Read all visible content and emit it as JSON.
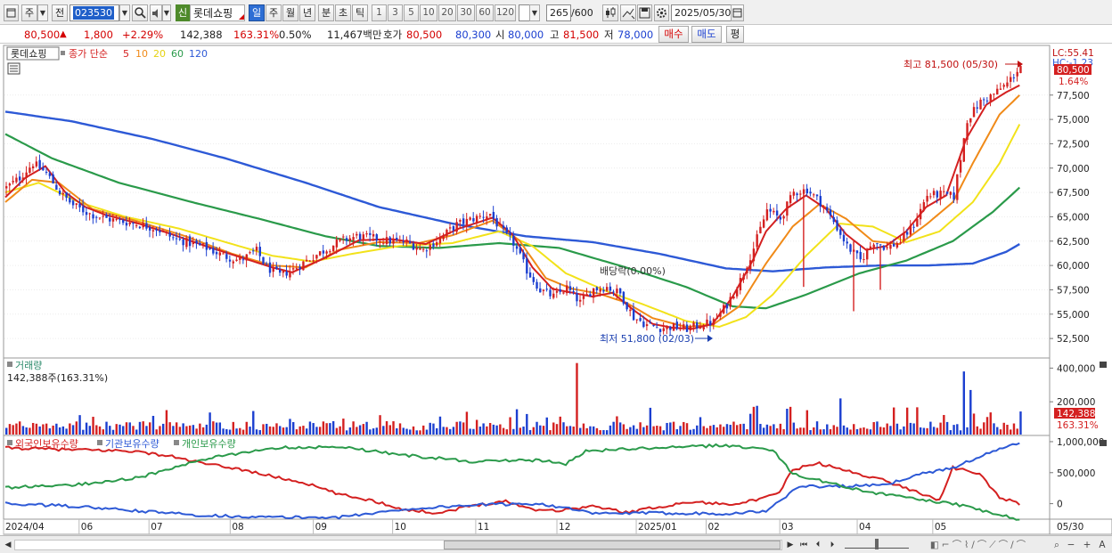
{
  "toolbar": {
    "market_label": "주",
    "prev_label": "전",
    "stock_code": "023530",
    "badge": "신",
    "stock_name": "롯데쇼핑",
    "periods": [
      "일",
      "주",
      "월",
      "년",
      "분",
      "초",
      "틱"
    ],
    "active_period": "일",
    "tick_numbers": [
      "1",
      "3",
      "5",
      "10",
      "20",
      "30",
      "60",
      "120"
    ],
    "count": "265",
    "count_max": "/600",
    "date": "2025/05/30"
  },
  "quote": {
    "price": "80,500",
    "arrow": "▲",
    "change": "1,800",
    "change_pct": "+2.29%",
    "volume": "142,388",
    "volume_pct": "163.31%",
    "turnover": "0.50%",
    "amount": "11,467백만",
    "hoga_label": "호가",
    "ask": "80,500",
    "bid": "80,300",
    "open_label": "시",
    "open": "80,000",
    "high_label": "고",
    "high": "81,500",
    "low_label": "저",
    "low": "78,000",
    "buy_label": "매수",
    "sell_label": "매도",
    "eval_label": "평"
  },
  "chart_data": {
    "type": "candlestick",
    "title": "롯데쇼핑",
    "legend": {
      "label": "종가 단순",
      "periods": [
        "5",
        "10",
        "20",
        "60",
        "120"
      ],
      "colors": [
        "#d42020",
        "#f08a18",
        "#f2e21a",
        "#2a9a4a",
        "#2d59d6"
      ]
    },
    "price_axis": {
      "ticks": [
        "77,500",
        "75,000",
        "72,500",
        "70,000",
        "67,500",
        "65,000",
        "62,500",
        "60,000",
        "57,500",
        "55,000",
        "52,500"
      ],
      "ylim": [
        50500,
        82600
      ],
      "lc_label": "LC:55.41",
      "hc_label": "HC:-1.23",
      "current_price": "80,500",
      "current_pct": "1.64%"
    },
    "annotations": {
      "high": "최고 81,500 (05/30)",
      "low": "최저 51,800 (02/03)",
      "dividend": "배당락(0.00%)"
    },
    "x_labels": [
      "2024/04",
      "06",
      "07",
      "08",
      "09",
      "10",
      "11",
      "12",
      "2025/01",
      "02",
      "03",
      "04",
      "05",
      "05/30"
    ],
    "close_anchors": [
      [
        0,
        68000
      ],
      [
        4,
        69000
      ],
      [
        8,
        70500
      ],
      [
        12,
        69500
      ],
      [
        16,
        67500
      ],
      [
        20,
        66200
      ],
      [
        25,
        65300
      ],
      [
        30,
        64800
      ],
      [
        35,
        64500
      ],
      [
        40,
        64200
      ],
      [
        45,
        63800
      ],
      [
        50,
        62800
      ],
      [
        55,
        62300
      ],
      [
        60,
        61800
      ],
      [
        65,
        61000
      ],
      [
        70,
        60500
      ],
      [
        75,
        61500
      ],
      [
        78,
        59800
      ],
      [
        82,
        59000
      ],
      [
        86,
        59600
      ],
      [
        90,
        60500
      ],
      [
        95,
        61500
      ],
      [
        100,
        62500
      ],
      [
        105,
        63000
      ],
      [
        110,
        62800
      ],
      [
        115,
        62500
      ],
      [
        120,
        62400
      ],
      [
        125,
        61600
      ],
      [
        130,
        62800
      ],
      [
        135,
        64200
      ],
      [
        140,
        64800
      ],
      [
        145,
        65300
      ],
      [
        148,
        63800
      ],
      [
        152,
        62300
      ],
      [
        156,
        59500
      ],
      [
        160,
        57500
      ],
      [
        164,
        56800
      ],
      [
        168,
        57700
      ],
      [
        172,
        56200
      ],
      [
        176,
        57600
      ],
      [
        180,
        57800
      ],
      [
        184,
        57100
      ],
      [
        188,
        54700
      ],
      [
        192,
        53900
      ],
      [
        196,
        53600
      ],
      [
        200,
        53700
      ],
      [
        204,
        53500
      ],
      [
        208,
        53900
      ],
      [
        212,
        54200
      ],
      [
        216,
        56000
      ],
      [
        220,
        58500
      ],
      [
        224,
        61800
      ],
      [
        228,
        65700
      ],
      [
        232,
        64800
      ],
      [
        236,
        67500
      ],
      [
        240,
        67800
      ],
      [
        244,
        66500
      ],
      [
        248,
        64500
      ],
      [
        252,
        62000
      ],
      [
        256,
        60500
      ],
      [
        260,
        62500
      ],
      [
        264,
        61800
      ],
      [
        268,
        62500
      ],
      [
        272,
        64200
      ],
      [
        276,
        67200
      ],
      [
        280,
        67300
      ],
      [
        284,
        67100
      ],
      [
        288,
        75000
      ],
      [
        292,
        76800
      ],
      [
        296,
        77600
      ],
      [
        300,
        78700
      ],
      [
        304,
        80500
      ]
    ],
    "wicks": [
      [
        254,
        55300,
        62500
      ],
      [
        239,
        57800,
        67800
      ],
      [
        262,
        57500,
        61800
      ]
    ],
    "ma": {
      "5": [
        [
          0,
          67000
        ],
        [
          6,
          69000
        ],
        [
          12,
          70200
        ],
        [
          18,
          67500
        ],
        [
          24,
          66000
        ],
        [
          30,
          65200
        ],
        [
          40,
          64300
        ],
        [
          50,
          63200
        ],
        [
          60,
          62000
        ],
        [
          70,
          60900
        ],
        [
          80,
          59800
        ],
        [
          86,
          59300
        ],
        [
          96,
          60800
        ],
        [
          106,
          62600
        ],
        [
          116,
          62700
        ],
        [
          126,
          62200
        ],
        [
          136,
          63800
        ],
        [
          146,
          64900
        ],
        [
          152,
          63200
        ],
        [
          158,
          59800
        ],
        [
          164,
          57600
        ],
        [
          170,
          57200
        ],
        [
          176,
          56800
        ],
        [
          182,
          57200
        ],
        [
          188,
          55500
        ],
        [
          194,
          54000
        ],
        [
          200,
          53600
        ],
        [
          206,
          53500
        ],
        [
          212,
          54000
        ],
        [
          218,
          56800
        ],
        [
          224,
          60500
        ],
        [
          228,
          63500
        ],
        [
          234,
          65800
        ],
        [
          240,
          67200
        ],
        [
          246,
          65800
        ],
        [
          252,
          63200
        ],
        [
          258,
          61600
        ],
        [
          264,
          62000
        ],
        [
          270,
          63500
        ],
        [
          276,
          66000
        ],
        [
          282,
          67200
        ],
        [
          288,
          73000
        ],
        [
          294,
          76500
        ],
        [
          300,
          77800
        ],
        [
          304,
          78500
        ]
      ],
      "10": [
        [
          0,
          66500
        ],
        [
          8,
          68800
        ],
        [
          16,
          68500
        ],
        [
          26,
          65800
        ],
        [
          40,
          64500
        ],
        [
          54,
          63000
        ],
        [
          68,
          61200
        ],
        [
          80,
          60000
        ],
        [
          90,
          59800
        ],
        [
          100,
          61600
        ],
        [
          112,
          62400
        ],
        [
          124,
          62300
        ],
        [
          134,
          63100
        ],
        [
          146,
          64600
        ],
        [
          154,
          62600
        ],
        [
          162,
          58700
        ],
        [
          170,
          57600
        ],
        [
          178,
          57100
        ],
        [
          186,
          56200
        ],
        [
          194,
          54600
        ],
        [
          204,
          53700
        ],
        [
          212,
          53900
        ],
        [
          220,
          55800
        ],
        [
          228,
          60200
        ],
        [
          236,
          64000
        ],
        [
          244,
          66300
        ],
        [
          252,
          64800
        ],
        [
          260,
          62500
        ],
        [
          268,
          62200
        ],
        [
          276,
          64200
        ],
        [
          284,
          66500
        ],
        [
          290,
          70500
        ],
        [
          298,
          75500
        ],
        [
          304,
          77500
        ]
      ],
      "20": [
        [
          0,
          67500
        ],
        [
          10,
          68500
        ],
        [
          22,
          66500
        ],
        [
          36,
          65000
        ],
        [
          52,
          63800
        ],
        [
          66,
          62400
        ],
        [
          80,
          61000
        ],
        [
          92,
          60400
        ],
        [
          104,
          61200
        ],
        [
          118,
          62000
        ],
        [
          134,
          62300
        ],
        [
          148,
          63500
        ],
        [
          158,
          62000
        ],
        [
          168,
          59200
        ],
        [
          180,
          57400
        ],
        [
          192,
          55900
        ],
        [
          204,
          54300
        ],
        [
          214,
          53700
        ],
        [
          222,
          54700
        ],
        [
          230,
          57000
        ],
        [
          240,
          61000
        ],
        [
          250,
          64300
        ],
        [
          260,
          64000
        ],
        [
          270,
          62400
        ],
        [
          280,
          63500
        ],
        [
          290,
          66500
        ],
        [
          298,
          70500
        ],
        [
          304,
          74500
        ]
      ],
      "60": [
        [
          0,
          73500
        ],
        [
          14,
          71000
        ],
        [
          34,
          68500
        ],
        [
          56,
          66500
        ],
        [
          76,
          64800
        ],
        [
          96,
          63000
        ],
        [
          112,
          62000
        ],
        [
          130,
          61800
        ],
        [
          148,
          62300
        ],
        [
          166,
          61800
        ],
        [
          186,
          59800
        ],
        [
          204,
          57800
        ],
        [
          218,
          55800
        ],
        [
          228,
          55600
        ],
        [
          240,
          57000
        ],
        [
          256,
          59200
        ],
        [
          270,
          60500
        ],
        [
          284,
          62500
        ],
        [
          296,
          65500
        ],
        [
          304,
          68000
        ]
      ],
      "120": [
        [
          0,
          75800
        ],
        [
          20,
          74800
        ],
        [
          44,
          73000
        ],
        [
          66,
          71000
        ],
        [
          90,
          68500
        ],
        [
          112,
          66000
        ],
        [
          134,
          64300
        ],
        [
          156,
          63000
        ],
        [
          176,
          62400
        ],
        [
          196,
          61200
        ],
        [
          216,
          59700
        ],
        [
          230,
          59400
        ],
        [
          246,
          59800
        ],
        [
          262,
          60000
        ],
        [
          276,
          60000
        ],
        [
          290,
          60200
        ],
        [
          300,
          61400
        ],
        [
          304,
          62200
        ]
      ]
    },
    "volume": {
      "label": "거래량",
      "info": "142,388주(163.31%)",
      "ticks": [
        "400,000",
        "200,000"
      ],
      "ylim": [
        0,
        460000
      ],
      "last": "142,388",
      "last_pct": "163.31%",
      "spikes": [
        [
          171,
          430000
        ],
        [
          250,
          220000
        ],
        [
          287,
          380000
        ],
        [
          289,
          270000
        ],
        [
          224,
          170000
        ],
        [
          240,
          150000
        ]
      ]
    },
    "holdings": {
      "labels": [
        "외국인보유수량",
        "기관보유수량",
        "개인보유수량"
      ],
      "colors": [
        "#d42020",
        "#2d59d6",
        "#2a9a4a"
      ],
      "ticks": [
        "1,000,000",
        "500,000",
        "0"
      ],
      "ylim": [
        -250000,
        1100000
      ],
      "foreign": [
        [
          0,
          900000
        ],
        [
          20,
          870000
        ],
        [
          38,
          850000
        ],
        [
          50,
          760000
        ],
        [
          60,
          640000
        ],
        [
          70,
          560000
        ],
        [
          80,
          440000
        ],
        [
          90,
          330000
        ],
        [
          100,
          150000
        ],
        [
          110,
          50000
        ],
        [
          120,
          -100000
        ],
        [
          130,
          -150000
        ],
        [
          140,
          -30000
        ],
        [
          150,
          40000
        ],
        [
          158,
          -90000
        ],
        [
          166,
          -110000
        ],
        [
          176,
          -40000
        ],
        [
          186,
          -140000
        ],
        [
          196,
          -50000
        ],
        [
          206,
          30000
        ],
        [
          216,
          -10000
        ],
        [
          226,
          60000
        ],
        [
          232,
          180000
        ],
        [
          236,
          550000
        ],
        [
          244,
          650000
        ],
        [
          252,
          530000
        ],
        [
          262,
          400000
        ],
        [
          270,
          250000
        ],
        [
          280,
          60000
        ],
        [
          284,
          580000
        ],
        [
          292,
          480000
        ],
        [
          298,
          100000
        ],
        [
          304,
          0
        ]
      ],
      "inst": [
        [
          0,
          0
        ],
        [
          20,
          -40000
        ],
        [
          40,
          -120000
        ],
        [
          60,
          -190000
        ],
        [
          80,
          -220000
        ],
        [
          100,
          -220000
        ],
        [
          120,
          -90000
        ],
        [
          140,
          -20000
        ],
        [
          160,
          0
        ],
        [
          166,
          -50000
        ],
        [
          176,
          -160000
        ],
        [
          196,
          -150000
        ],
        [
          216,
          -160000
        ],
        [
          228,
          -120000
        ],
        [
          238,
          280000
        ],
        [
          252,
          280000
        ],
        [
          264,
          300000
        ],
        [
          272,
          450000
        ],
        [
          284,
          580000
        ],
        [
          294,
          800000
        ],
        [
          304,
          980000
        ]
      ],
      "retail": [
        [
          0,
          260000
        ],
        [
          20,
          300000
        ],
        [
          40,
          420000
        ],
        [
          60,
          720000
        ],
        [
          80,
          900000
        ],
        [
          100,
          920000
        ],
        [
          120,
          780000
        ],
        [
          140,
          680000
        ],
        [
          160,
          700000
        ],
        [
          168,
          640000
        ],
        [
          174,
          850000
        ],
        [
          196,
          900000
        ],
        [
          216,
          940000
        ],
        [
          230,
          870000
        ],
        [
          236,
          480000
        ],
        [
          248,
          320000
        ],
        [
          260,
          180000
        ],
        [
          272,
          80000
        ],
        [
          284,
          0
        ],
        [
          292,
          -100000
        ],
        [
          304,
          -260000
        ]
      ]
    }
  },
  "statusbar": {
    "tools": [
      "▶",
      "⏮",
      "⏴",
      "⏵",
      "⏭"
    ],
    "right_tools": [
      "−",
      "+",
      "A"
    ]
  }
}
